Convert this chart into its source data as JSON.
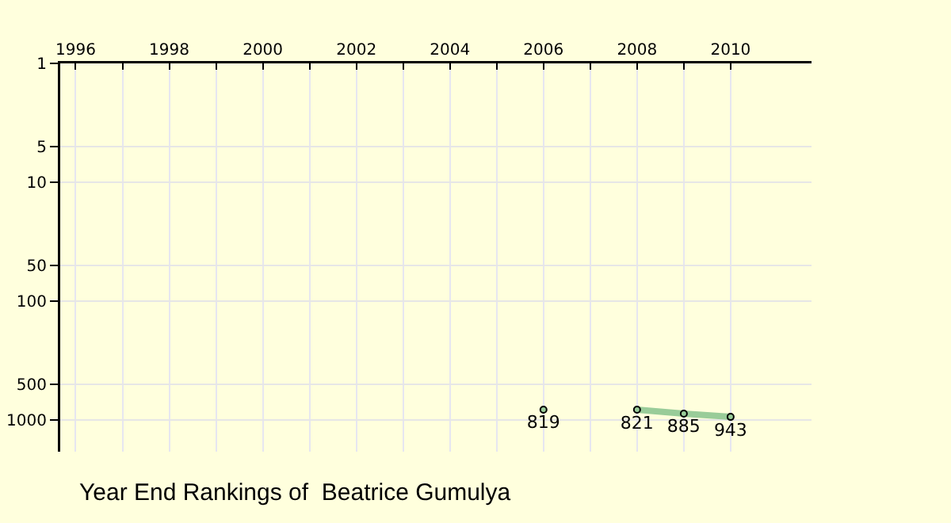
{
  "chart_data": {
    "type": "line",
    "title": "Year End Rankings of  Beatrice Gumulya",
    "x": [
      2006,
      2007,
      2008,
      2009,
      2010
    ],
    "series": [
      {
        "color": "#99cc99",
        "values": [
          819,
          null,
          821,
          885,
          943
        ]
      }
    ],
    "data_labels": true,
    "marker": "circle",
    "line_style": "solid",
    "log": "y",
    "grid": true,
    "xlim": [
      1995.67,
      2011.73
    ],
    "xticks": [
      1996,
      {
        "value": 1997,
        "label": null
      },
      1998,
      {
        "value": 1999,
        "label": null
      },
      2000,
      {
        "value": 2001,
        "label": null
      },
      2002,
      {
        "value": 2003,
        "label": null
      },
      2004,
      {
        "value": 2005,
        "label": null
      },
      2006,
      {
        "value": 2007,
        "label": null
      },
      2008,
      {
        "value": 2009,
        "label": null
      },
      2010
    ],
    "ylim": [
      1850,
      1
    ],
    "yticks": [
      1,
      5,
      10,
      50,
      100,
      500,
      1000
    ]
  }
}
